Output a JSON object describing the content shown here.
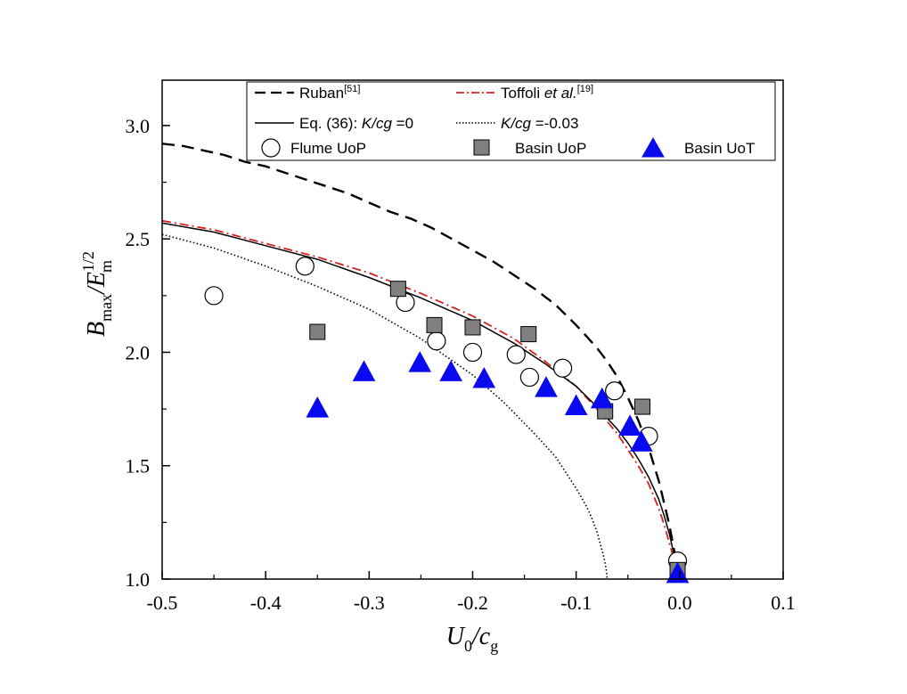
{
  "chart_data": {
    "type": "scatter",
    "title": "",
    "xlabel": {
      "main": "U",
      "sub1": "0",
      "mid": "/c",
      "sub2": "g"
    },
    "ylabel": {
      "main": "B",
      "sub1": "max",
      "mid": "/E",
      "sub2": "m",
      "sup": "1/2"
    },
    "xlim": [
      -0.5,
      0.1
    ],
    "ylim": [
      1.0,
      3.2
    ],
    "xticks": [
      -0.5,
      -0.4,
      -0.3,
      -0.2,
      -0.1,
      0.0,
      0.1
    ],
    "xtick_labels": [
      "-0.5",
      "-0.4",
      "-0.3",
      "-0.2",
      "-0.1",
      "0.0",
      "0.1"
    ],
    "yticks": [
      1.0,
      1.5,
      2.0,
      2.5,
      3.0
    ],
    "ytick_labels": [
      "1.0",
      "1.5",
      "2.0",
      "2.5",
      "3.0"
    ],
    "grid": false,
    "legend_position": "top",
    "legend": {
      "ruban": {
        "text": "Ruban",
        "ref": "[51]"
      },
      "toffoli": {
        "text": "Toffoli ",
        "ital": "et al.",
        "ref": "[19]"
      },
      "eq36": {
        "text": "Eq. (36):  ",
        "ital": "K/cg",
        "rest": " =0"
      },
      "eq36b": {
        "ital": "K/cg",
        "rest": " =-0.03"
      },
      "flume": {
        "text": "Flume UoP"
      },
      "basin_uop": {
        "text": "Basin  UoP"
      },
      "basin_uot": {
        "text": "Basin  UoT"
      }
    },
    "series": [
      {
        "name": "Ruban",
        "kind": "line",
        "style": "dashed",
        "color": "#000000",
        "x": [
          -0.5,
          -0.48,
          -0.46,
          -0.44,
          -0.42,
          -0.4,
          -0.38,
          -0.36,
          -0.34,
          -0.32,
          -0.3,
          -0.28,
          -0.26,
          -0.24,
          -0.22,
          -0.2,
          -0.18,
          -0.16,
          -0.14,
          -0.12,
          -0.1,
          -0.09,
          -0.08,
          -0.07,
          -0.06,
          -0.05,
          -0.04,
          -0.03,
          -0.02,
          -0.01,
          -0.005,
          0.0
        ],
        "y": [
          2.92,
          2.91,
          2.89,
          2.87,
          2.84,
          2.82,
          2.79,
          2.76,
          2.73,
          2.7,
          2.66,
          2.62,
          2.59,
          2.55,
          2.5,
          2.45,
          2.4,
          2.34,
          2.28,
          2.21,
          2.12,
          2.07,
          2.02,
          1.96,
          1.89,
          1.8,
          1.7,
          1.58,
          1.43,
          1.24,
          1.12,
          1.0
        ]
      },
      {
        "name": "Toffoli et al.",
        "kind": "line",
        "style": "dashdot",
        "color": "#d42020",
        "x": [
          -0.5,
          -0.45,
          -0.4,
          -0.35,
          -0.3,
          -0.25,
          -0.2,
          -0.16,
          -0.13,
          -0.1,
          -0.08,
          -0.06,
          -0.05,
          -0.04,
          -0.03,
          -0.02,
          -0.015,
          -0.01,
          -0.005,
          0.0
        ],
        "y": [
          2.58,
          2.54,
          2.48,
          2.42,
          2.35,
          2.26,
          2.16,
          2.06,
          1.96,
          1.85,
          1.75,
          1.64,
          1.57,
          1.5,
          1.42,
          1.31,
          1.24,
          1.16,
          1.08,
          1.0
        ]
      },
      {
        "name": "Eq. (36): K/cg =0",
        "kind": "line",
        "style": "solid",
        "color": "#000000",
        "x": [
          -0.5,
          -0.45,
          -0.4,
          -0.35,
          -0.3,
          -0.25,
          -0.2,
          -0.16,
          -0.13,
          -0.1,
          -0.08,
          -0.06,
          -0.05,
          -0.04,
          -0.03,
          -0.02,
          -0.015,
          -0.01,
          -0.005,
          0.0
        ],
        "y": [
          2.57,
          2.53,
          2.47,
          2.41,
          2.33,
          2.24,
          2.14,
          2.04,
          1.95,
          1.85,
          1.76,
          1.66,
          1.6,
          1.53,
          1.45,
          1.35,
          1.28,
          1.2,
          1.1,
          1.0
        ]
      },
      {
        "name": "K/cg =-0.03",
        "kind": "line",
        "style": "dotted",
        "color": "#000000",
        "x": [
          -0.5,
          -0.45,
          -0.4,
          -0.35,
          -0.3,
          -0.25,
          -0.2,
          -0.17,
          -0.14,
          -0.12,
          -0.1,
          -0.09,
          -0.085,
          -0.08,
          -0.077,
          -0.074,
          -0.072,
          -0.0705,
          -0.07
        ],
        "y": [
          2.52,
          2.46,
          2.38,
          2.29,
          2.19,
          2.06,
          1.9,
          1.78,
          1.64,
          1.54,
          1.4,
          1.32,
          1.27,
          1.21,
          1.16,
          1.11,
          1.07,
          1.03,
          1.0
        ]
      },
      {
        "name": "Flume UoP",
        "kind": "points",
        "marker": "circle",
        "color": "#ffffff",
        "x": [
          -0.45,
          -0.362,
          -0.265,
          -0.235,
          -0.2,
          -0.158,
          -0.145,
          -0.113,
          -0.063,
          -0.03,
          -0.002
        ],
        "y": [
          2.25,
          2.38,
          2.22,
          2.05,
          2.0,
          1.99,
          1.89,
          1.93,
          1.83,
          1.63,
          1.08
        ]
      },
      {
        "name": "Basin  UoP",
        "kind": "points",
        "marker": "square",
        "color": "#808080",
        "x": [
          -0.35,
          -0.272,
          -0.237,
          -0.2,
          -0.146,
          -0.072,
          -0.036,
          -0.002
        ],
        "y": [
          2.09,
          2.28,
          2.12,
          2.11,
          2.08,
          1.74,
          1.76,
          1.04
        ]
      },
      {
        "name": "Basin  UoT",
        "kind": "points",
        "marker": "triangle",
        "color": "#0a0aee",
        "x": [
          -0.35,
          -0.305,
          -0.251,
          -0.221,
          -0.189,
          -0.129,
          -0.1,
          -0.075,
          -0.048,
          -0.037,
          -0.002
        ],
        "y": [
          1.75,
          1.91,
          1.95,
          1.91,
          1.88,
          1.84,
          1.76,
          1.79,
          1.67,
          1.6,
          1.02
        ]
      }
    ]
  }
}
